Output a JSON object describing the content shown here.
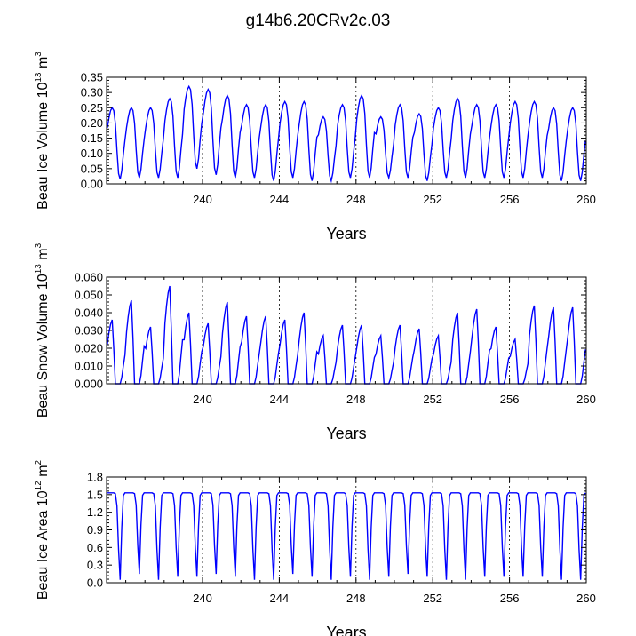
{
  "title": "g14b6.20CRv2c.03",
  "colors": {
    "series": "#0000ff",
    "axis": "#000000",
    "refline": "#000000"
  },
  "chart_data": [
    {
      "type": "line",
      "name": "beau-ice-volume",
      "ylabel": {
        "prefix": "Beau Ice Volume 10",
        "exp": "13",
        "unit": " m",
        "unit_exp": "3"
      },
      "xlabel": "Years",
      "xlim": [
        235,
        260
      ],
      "ylim": [
        0,
        0.35
      ],
      "xticks": [
        240,
        244,
        248,
        252,
        256,
        260
      ],
      "xtick_labels": [
        "240",
        "244",
        "248",
        "252",
        "256",
        "260"
      ],
      "yticks": [
        0,
        0.05,
        0.1,
        0.15,
        0.2,
        0.25,
        0.3,
        0.35
      ],
      "ytick_labels": [
        "0.00",
        "0.05",
        "0.10",
        "0.15",
        "0.20",
        "0.25",
        "0.30",
        "0.35"
      ],
      "ref_lines_x": [
        240,
        244,
        248,
        252,
        256
      ],
      "grid": false,
      "profile": "volume",
      "seasonal": {
        "start_year": 235,
        "years": 25,
        "min_month": 9,
        "max_month": 4
      },
      "annual_max": [
        0.25,
        0.25,
        0.25,
        0.28,
        0.32,
        0.31,
        0.29,
        0.26,
        0.26,
        0.27,
        0.27,
        0.22,
        0.26,
        0.29,
        0.22,
        0.26,
        0.23,
        0.25,
        0.28,
        0.26,
        0.26,
        0.27,
        0.27,
        0.25,
        0.25
      ],
      "annual_min": [
        0.015,
        0.02,
        0.02,
        0.02,
        0.05,
        0.03,
        0.02,
        0.02,
        0.01,
        0.02,
        0.01,
        0.01,
        0.02,
        0.02,
        0.02,
        0.02,
        0.01,
        0.02,
        0.02,
        0.02,
        0.02,
        0.02,
        0.02,
        0.01,
        0.01
      ],
      "x_end": 260
    },
    {
      "type": "line",
      "name": "beau-snow-volume",
      "ylabel": {
        "prefix": "Beau Snow Volume 10",
        "exp": "13",
        "unit": " m",
        "unit_exp": "3"
      },
      "xlabel": "Years",
      "xlim": [
        235,
        260
      ],
      "ylim": [
        0,
        0.06
      ],
      "xticks": [
        240,
        244,
        248,
        252,
        256,
        260
      ],
      "xtick_labels": [
        "240",
        "244",
        "248",
        "252",
        "256",
        "260"
      ],
      "yticks": [
        0,
        0.01,
        0.02,
        0.03,
        0.04,
        0.05,
        0.06
      ],
      "ytick_labels": [
        "0.000",
        "0.010",
        "0.020",
        "0.030",
        "0.040",
        "0.050",
        "0.060"
      ],
      "ref_lines_x": [
        240,
        244,
        248,
        252,
        256
      ],
      "grid": false,
      "profile": "snow",
      "seasonal": {
        "start_year": 235,
        "years": 25,
        "min_month": 7,
        "max_month": 4
      },
      "annual_max": [
        0.036,
        0.047,
        0.032,
        0.055,
        0.04,
        0.034,
        0.046,
        0.038,
        0.038,
        0.036,
        0.04,
        0.027,
        0.033,
        0.033,
        0.027,
        0.033,
        0.031,
        0.027,
        0.04,
        0.042,
        0.032,
        0.025,
        0.044,
        0.043,
        0.043
      ],
      "annual_min": [
        0,
        0,
        0,
        0,
        0,
        0,
        0,
        0,
        0,
        0,
        0,
        0,
        0,
        0,
        0,
        0,
        0,
        0,
        0,
        0,
        0,
        0,
        0,
        0,
        0
      ],
      "x_end": 260
    },
    {
      "type": "line",
      "name": "beau-ice-area",
      "ylabel": {
        "prefix": "Beau Ice Area 10",
        "exp": "12",
        "unit": " m",
        "unit_exp": "2"
      },
      "xlabel": "Years",
      "xlim": [
        235,
        260
      ],
      "ylim": [
        0,
        1.8
      ],
      "xticks": [
        240,
        244,
        248,
        252,
        256,
        260
      ],
      "xtick_labels": [
        "240",
        "244",
        "248",
        "252",
        "256",
        "260"
      ],
      "yticks": [
        0,
        0.3,
        0.6,
        0.9,
        1.2,
        1.5,
        1.8
      ],
      "ytick_labels": [
        "0.0",
        "0.3",
        "0.6",
        "0.9",
        "1.2",
        "1.5",
        "1.8"
      ],
      "ref_lines_x": [
        240,
        244,
        248,
        252,
        256
      ],
      "grid": false,
      "profile": "area",
      "seasonal": {
        "start_year": 235,
        "years": 25,
        "min_month": 9,
        "max_month": 2
      },
      "annual_max": [
        1.53,
        1.53,
        1.53,
        1.53,
        1.53,
        1.53,
        1.53,
        1.53,
        1.53,
        1.53,
        1.53,
        1.53,
        1.53,
        1.53,
        1.53,
        1.53,
        1.53,
        1.53,
        1.53,
        1.53,
        1.53,
        1.53,
        1.53,
        1.53,
        1.53
      ],
      "annual_min": [
        0.05,
        0.15,
        0.05,
        0.1,
        0.1,
        0.15,
        0.1,
        0.05,
        0.05,
        0.15,
        0.1,
        0.05,
        0.1,
        0.05,
        0.1,
        0.15,
        0.1,
        0.05,
        0.05,
        0.1,
        0.1,
        0.1,
        0.1,
        0.05,
        0.05
      ],
      "x_end": 260
    }
  ]
}
